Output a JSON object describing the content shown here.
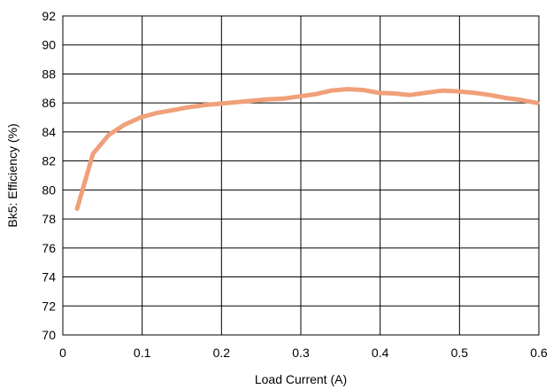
{
  "chart_data": {
    "type": "line",
    "title": "",
    "xlabel": "Load Current (A)",
    "ylabel": "Bk5: Efficiency (%)",
    "xlim": [
      0,
      0.6
    ],
    "ylim": [
      70,
      92
    ],
    "x_ticks": [
      "0",
      "0.1",
      "0.2",
      "0.3",
      "0.4",
      "0.5",
      "0.6"
    ],
    "y_ticks": [
      "70",
      "72",
      "74",
      "76",
      "78",
      "80",
      "82",
      "84",
      "86",
      "88",
      "90",
      "92"
    ],
    "grid": true,
    "legend": "none",
    "series": [
      {
        "color": "#f0a07a",
        "x": [
          0.018,
          0.038,
          0.058,
          0.078,
          0.098,
          0.118,
          0.138,
          0.158,
          0.178,
          0.198,
          0.218,
          0.238,
          0.258,
          0.278,
          0.298,
          0.318,
          0.338,
          0.358,
          0.378,
          0.398,
          0.418,
          0.438,
          0.458,
          0.478,
          0.498,
          0.518,
          0.538,
          0.558,
          0.578,
          0.598
        ],
        "y": [
          78.7,
          82.5,
          83.8,
          84.5,
          85.0,
          85.3,
          85.5,
          85.7,
          85.85,
          85.95,
          86.05,
          86.15,
          86.25,
          86.3,
          86.45,
          86.6,
          86.85,
          86.95,
          86.9,
          86.7,
          86.65,
          86.55,
          86.7,
          86.85,
          86.8,
          86.7,
          86.55,
          86.35,
          86.2,
          86.0
        ]
      }
    ]
  }
}
